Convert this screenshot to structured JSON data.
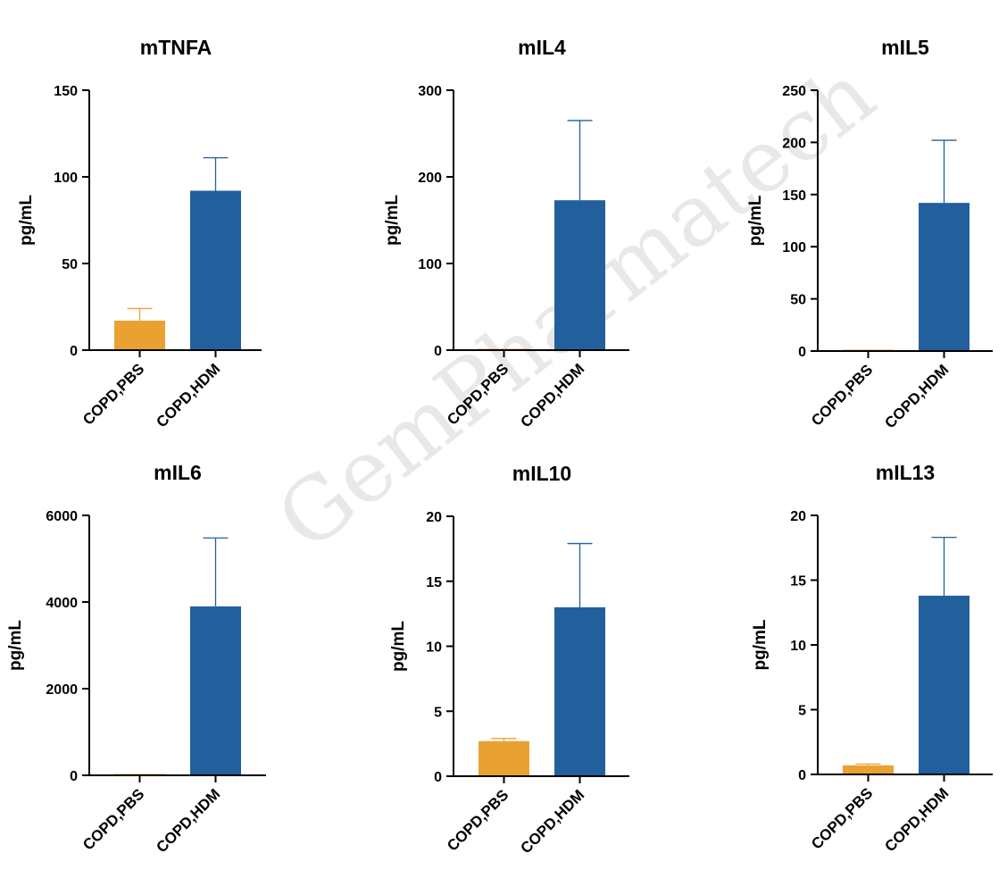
{
  "watermark": "GemPharmatech",
  "colors": {
    "pbs": "#E9A232",
    "hdm": "#22609D",
    "axis": "#000000"
  },
  "chart_data": [
    {
      "type": "bar",
      "title": "mTNFA",
      "ylabel": "pg/mL",
      "categories": [
        "COPD,PBS",
        "COPD,HDM"
      ],
      "values": [
        17,
        92
      ],
      "errors": [
        7,
        19
      ],
      "ylim": [
        0,
        150
      ],
      "yticks": [
        0,
        50,
        100,
        150
      ],
      "tick_labels": [
        "0",
        "50",
        "100",
        "150"
      ]
    },
    {
      "type": "bar",
      "title": "mIL4",
      "ylabel": "pg/mL",
      "categories": [
        "COPD,PBS",
        "COPD,HDM"
      ],
      "values": [
        0,
        173
      ],
      "errors": [
        0,
        92
      ],
      "ylim": [
        0,
        300
      ],
      "yticks": [
        0,
        100,
        200,
        300
      ],
      "tick_labels": [
        "0",
        "100",
        "200",
        "300"
      ]
    },
    {
      "type": "bar",
      "title": "mIL5",
      "ylabel": "pg/mL",
      "categories": [
        "COPD,PBS",
        "COPD,HDM"
      ],
      "values": [
        1,
        142
      ],
      "errors": [
        0,
        60
      ],
      "ylim": [
        0,
        250
      ],
      "yticks": [
        0,
        50,
        100,
        150,
        200,
        250
      ],
      "tick_labels": [
        "0",
        "50",
        "100",
        "150",
        "200",
        "250"
      ]
    },
    {
      "type": "bar",
      "title": "mIL6",
      "ylabel": "pg/mL",
      "categories": [
        "COPD,PBS",
        "COPD,HDM"
      ],
      "values": [
        30,
        3900
      ],
      "errors": [
        0,
        1580
      ],
      "ylim": [
        0,
        6000
      ],
      "yticks": [
        0,
        2000,
        4000,
        6000
      ],
      "tick_labels": [
        "0",
        "2000",
        "4000",
        "6000"
      ]
    },
    {
      "type": "bar",
      "title": "mIL10",
      "ylabel": "pg/mL",
      "categories": [
        "COPD,PBS",
        "COPD,HDM"
      ],
      "values": [
        2.7,
        13.0
      ],
      "errors": [
        0.2,
        4.9
      ],
      "ylim": [
        0,
        20
      ],
      "yticks": [
        0,
        5,
        10,
        15,
        20
      ],
      "tick_labels": [
        "0",
        "5",
        "10",
        "15",
        "20"
      ]
    },
    {
      "type": "bar",
      "title": "mIL13",
      "ylabel": "pg/mL",
      "categories": [
        "COPD,PBS",
        "COPD,HDM"
      ],
      "values": [
        0.7,
        13.8
      ],
      "errors": [
        0.1,
        4.5
      ],
      "ylim": [
        0,
        20
      ],
      "yticks": [
        0,
        5,
        10,
        15,
        20
      ],
      "tick_labels": [
        "0",
        "5",
        "10",
        "15",
        "20"
      ]
    }
  ]
}
